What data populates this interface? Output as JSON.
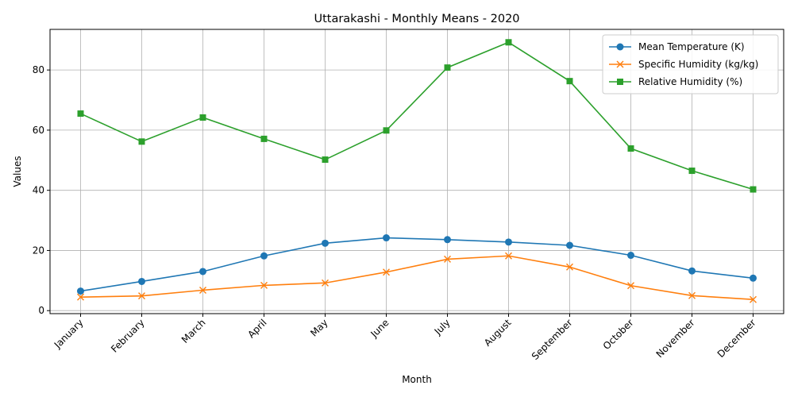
{
  "chart_data": {
    "type": "line",
    "title": "Uttarakashi - Monthly Means - 2020",
    "xlabel": "Month",
    "ylabel": "Values",
    "categories": [
      "January",
      "February",
      "March",
      "April",
      "May",
      "June",
      "July",
      "August",
      "September",
      "October",
      "November",
      "December"
    ],
    "ylim": [
      -1,
      93.5
    ],
    "yticks": [
      0,
      20,
      40,
      60,
      80
    ],
    "grid": true,
    "legend_position": "top-right",
    "series": [
      {
        "name": "Mean Temperature (K)",
        "color": "#1f77b4",
        "marker": "circle",
        "values": [
          6.5,
          9.7,
          13.0,
          18.2,
          22.4,
          24.2,
          23.6,
          22.8,
          21.7,
          18.4,
          13.2,
          10.8
        ]
      },
      {
        "name": "Specific Humidity (kg/kg)",
        "color": "#ff7f0e",
        "marker": "x",
        "values": [
          4.5,
          4.9,
          6.8,
          8.4,
          9.2,
          12.8,
          17.1,
          18.2,
          14.5,
          8.3,
          5.0,
          3.7
        ]
      },
      {
        "name": "Relative Humidity (%)",
        "color": "#2ca02c",
        "marker": "square",
        "values": [
          65.5,
          56.2,
          64.2,
          57.1,
          50.2,
          59.9,
          80.8,
          89.2,
          76.3,
          53.9,
          46.5,
          40.3
        ]
      }
    ]
  }
}
